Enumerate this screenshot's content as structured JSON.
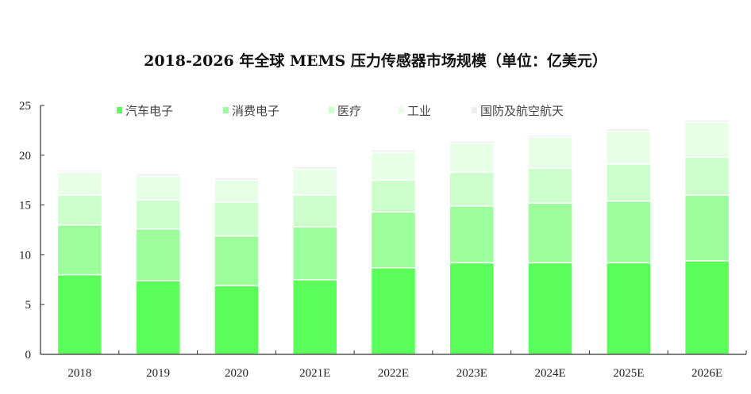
{
  "chart_data": {
    "type": "bar",
    "stacked": true,
    "title": "2018-2026 年全球 MEMS 压力传感器市场规模（单位：亿美元）",
    "xlabel": "",
    "ylabel": "",
    "ylim": [
      0,
      25
    ],
    "yticks": [
      0,
      5,
      10,
      15,
      20,
      25
    ],
    "grid": false,
    "legend_position": "top",
    "categories": [
      "2018",
      "2019",
      "2020",
      "2021E",
      "2022E",
      "2023E",
      "2024E",
      "2025E",
      "2026E"
    ],
    "series": [
      {
        "name": "汽车电子",
        "color": "#5aff5a",
        "values": [
          8.0,
          7.4,
          6.9,
          7.5,
          8.7,
          9.2,
          9.2,
          9.2,
          9.4
        ]
      },
      {
        "name": "消费电子",
        "color": "#9cff9c",
        "values": [
          5.0,
          5.2,
          5.0,
          5.3,
          5.6,
          5.7,
          6.0,
          6.2,
          6.6
        ]
      },
      {
        "name": "医疗",
        "color": "#ccffcc",
        "values": [
          3.0,
          2.9,
          3.4,
          3.2,
          3.2,
          3.4,
          3.5,
          3.7,
          3.8
        ]
      },
      {
        "name": "工业",
        "color": "#e6ffe6",
        "values": [
          2.3,
          2.4,
          2.2,
          2.6,
          2.8,
          2.9,
          3.1,
          3.3,
          3.5
        ]
      },
      {
        "name": "国防及航空航天",
        "color": "#eeeeee",
        "values": [
          0.2,
          0.25,
          0.25,
          0.25,
          0.25,
          0.2,
          0.2,
          0.25,
          0.25
        ]
      }
    ]
  }
}
